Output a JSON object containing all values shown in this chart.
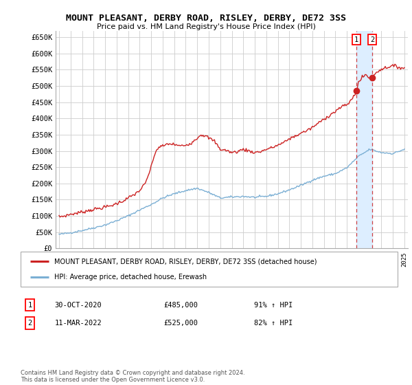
{
  "title": "MOUNT PLEASANT, DERBY ROAD, RISLEY, DERBY, DE72 3SS",
  "subtitle": "Price paid vs. HM Land Registry's House Price Index (HPI)",
  "ylabel_ticks": [
    "£0",
    "£50K",
    "£100K",
    "£150K",
    "£200K",
    "£250K",
    "£300K",
    "£350K",
    "£400K",
    "£450K",
    "£500K",
    "£550K",
    "£600K",
    "£650K"
  ],
  "ytick_vals": [
    0,
    50000,
    100000,
    150000,
    200000,
    250000,
    300000,
    350000,
    400000,
    450000,
    500000,
    550000,
    600000,
    650000
  ],
  "ylim": [
    0,
    670000
  ],
  "xlim_start": 1994.7,
  "xlim_end": 2025.3,
  "hpi_color": "#7bafd4",
  "price_color": "#cc2222",
  "grid_color": "#cccccc",
  "bg_color": "#ffffff",
  "fill_color": "#ddeeff",
  "legend_label_price": "MOUNT PLEASANT, DERBY ROAD, RISLEY, DERBY, DE72 3SS (detached house)",
  "legend_label_hpi": "HPI: Average price, detached house, Erewash",
  "annotation1_label": "1",
  "annotation1_date": "30-OCT-2020",
  "annotation1_price": "£485,000",
  "annotation1_hpi": "91% ↑ HPI",
  "annotation2_label": "2",
  "annotation2_date": "11-MAR-2022",
  "annotation2_price": "£525,000",
  "annotation2_hpi": "82% ↑ HPI",
  "footnote": "Contains HM Land Registry data © Crown copyright and database right 2024.\nThis data is licensed under the Open Government Licence v3.0.",
  "marker1_x": 2020.83,
  "marker1_y": 485000,
  "marker2_x": 2022.2,
  "marker2_y": 525000,
  "vline_x1": 2020.83,
  "vline_x2": 2022.2
}
